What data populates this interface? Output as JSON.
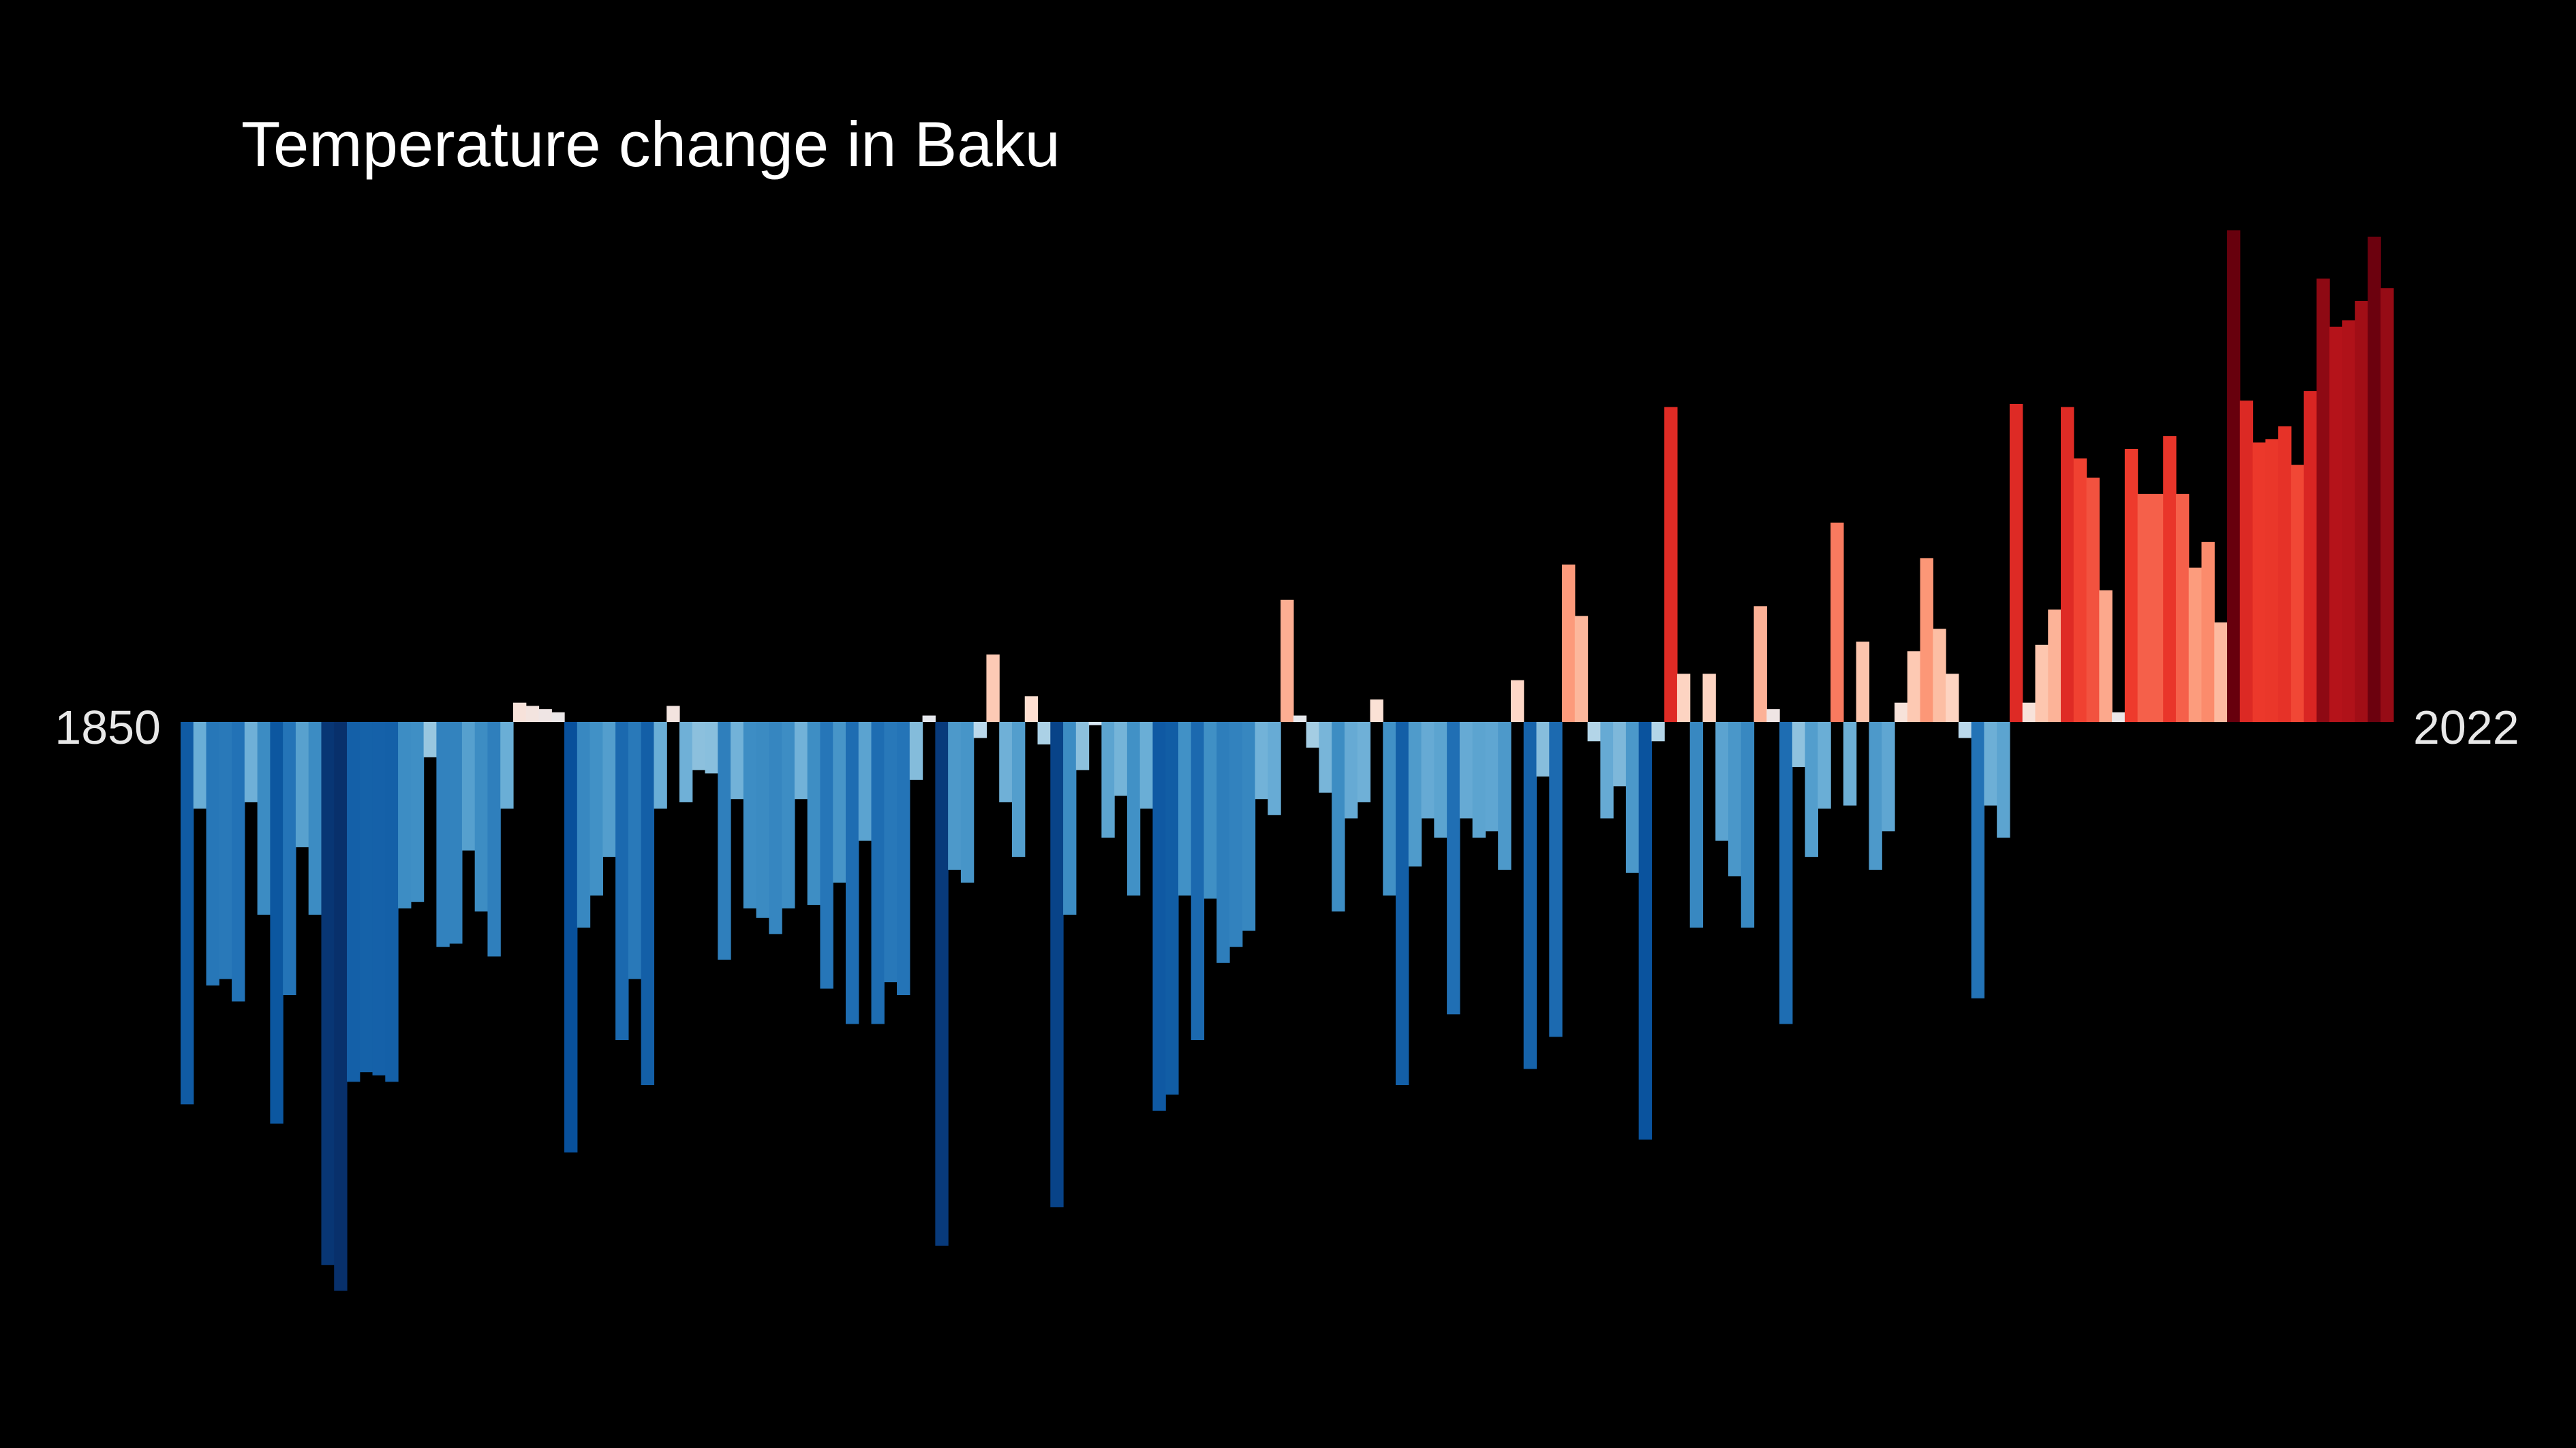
{
  "chart_data": {
    "type": "bar",
    "title": "Temperature change in Baku",
    "start_label": "1850",
    "end_label": "2022",
    "xlabel": "",
    "ylabel": "",
    "x_start": 1850,
    "x_end": 2022,
    "ylim": [
      -1.77,
      1.53
    ],
    "grid": false,
    "legend": "none",
    "colormap": "diverging blue-white-red (RdBu reversed)",
    "values": [
      -1.19,
      -0.27,
      -0.82,
      -0.8,
      -0.87,
      -0.25,
      -0.6,
      -1.25,
      -0.85,
      -0.39,
      -0.6,
      -1.69,
      -1.77,
      -1.12,
      -1.09,
      -1.1,
      -1.12,
      -0.58,
      -0.56,
      -0.11,
      -0.7,
      -0.69,
      -0.4,
      -0.59,
      -0.73,
      -0.27,
      0.06,
      0.05,
      0.04,
      0.03,
      -1.34,
      -0.64,
      -0.54,
      -0.42,
      -0.99,
      -0.8,
      -1.13,
      -0.27,
      0.05,
      -0.25,
      -0.15,
      -0.16,
      -0.74,
      -0.24,
      -0.58,
      -0.61,
      -0.66,
      -0.58,
      -0.24,
      -0.57,
      -0.83,
      -0.5,
      -0.94,
      -0.37,
      -0.94,
      -0.81,
      -0.85,
      -0.18,
      0.02,
      -1.63,
      -0.46,
      -0.5,
      -0.05,
      0.21,
      -0.25,
      -0.42,
      0.08,
      -0.07,
      -1.51,
      -0.6,
      -0.15,
      -0.01,
      -0.36,
      -0.23,
      -0.54,
      -0.27,
      -1.21,
      -1.16,
      -0.54,
      -0.99,
      -0.55,
      -0.75,
      -0.7,
      -0.65,
      -0.24,
      -0.29,
      0.38,
      0.02,
      -0.08,
      -0.22,
      -0.59,
      -0.3,
      -0.25,
      0.07,
      -0.54,
      -1.13,
      -0.45,
      -0.3,
      -0.36,
      -0.91,
      -0.3,
      -0.36,
      -0.34,
      -0.46,
      0.13,
      -1.08,
      -0.17,
      -0.98,
      0.49,
      0.33,
      -0.06,
      -0.3,
      -0.2,
      -0.47,
      -1.3,
      -0.06,
      0.98,
      0.15,
      -0.64,
      0.15,
      -0.37,
      -0.48,
      -0.64,
      0.36,
      0.04,
      -0.94,
      -0.14,
      -0.42,
      -0.27,
      0.62,
      -0.26,
      0.25,
      -0.46,
      -0.34,
      0.06,
      0.22,
      0.51,
      0.29,
      0.15,
      -0.05,
      -0.86,
      -0.26,
      -0.36,
      0.99,
      0.06,
      0.24,
      0.35,
      0.98,
      0.82,
      0.76,
      0.41,
      0.03,
      0.85,
      0.71,
      0.71,
      0.89,
      0.71,
      0.48,
      0.56,
      0.31,
      1.53,
      1.0,
      0.87,
      0.88,
      0.92,
      0.8,
      1.03,
      1.38,
      1.23,
      1.25,
      1.31,
      1.51,
      1.35
    ]
  }
}
